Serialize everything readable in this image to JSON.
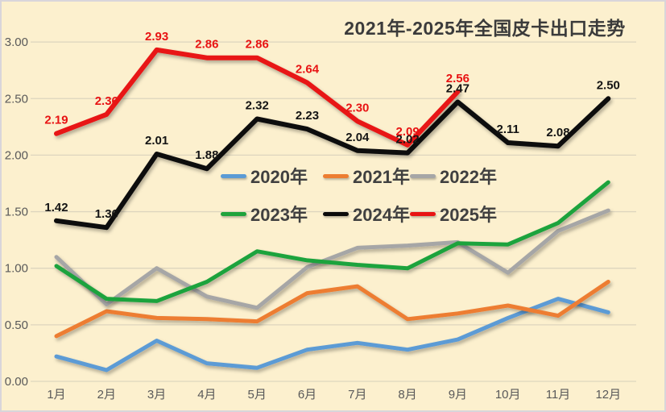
{
  "window": {
    "background_color": "#FCF0CE",
    "border_color": "#D9D5DA"
  },
  "chart_data": {
    "type": "line",
    "title": "2021年-2025年全国皮卡出口走势",
    "xlabel": "",
    "ylabel": "",
    "categories": [
      "1月",
      "2月",
      "3月",
      "4月",
      "5月",
      "6月",
      "7月",
      "8月",
      "9月",
      "10月",
      "11月",
      "12月"
    ],
    "y_ticks": [
      "0.00",
      "0.50",
      "1.00",
      "1.50",
      "2.00",
      "2.50",
      "3.00"
    ],
    "ylim": [
      0,
      3.0
    ],
    "grid": true,
    "gridline_color": "#DDD5BE",
    "legend_position": "inside-center-two-rows",
    "axis_label_color": "#595959",
    "series": [
      {
        "name": "2020年",
        "color": "#5B9BD5",
        "labels_shown": false,
        "values": [
          0.22,
          0.1,
          0.36,
          0.16,
          0.12,
          0.28,
          0.34,
          0.28,
          0.37,
          0.56,
          0.73,
          0.61
        ]
      },
      {
        "name": "2021年",
        "color": "#ED7D31",
        "labels_shown": false,
        "values": [
          0.4,
          0.62,
          0.56,
          0.55,
          0.53,
          0.78,
          0.84,
          0.55,
          0.6,
          0.67,
          0.58,
          0.88
        ]
      },
      {
        "name": "2022年",
        "color": "#A6A6A6",
        "labels_shown": false,
        "values": [
          1.1,
          0.68,
          1.0,
          0.75,
          0.65,
          1.01,
          1.18,
          1.2,
          1.23,
          0.96,
          1.33,
          1.51
        ]
      },
      {
        "name": "2023年",
        "color": "#1FA33C",
        "labels_shown": false,
        "values": [
          1.02,
          0.73,
          0.71,
          0.88,
          1.15,
          1.07,
          1.03,
          1.0,
          1.22,
          1.21,
          1.4,
          1.76
        ]
      },
      {
        "name": "2024年",
        "color": "#0A0A0A",
        "labels_shown": true,
        "label_color": "#141414",
        "values": [
          1.42,
          1.36,
          2.01,
          1.88,
          2.32,
          2.23,
          2.04,
          2.02,
          2.47,
          2.11,
          2.08,
          2.5
        ]
      },
      {
        "name": "2025年",
        "color": "#E81313",
        "labels_shown": true,
        "label_color": "#E81313",
        "values": [
          2.19,
          2.36,
          2.93,
          2.86,
          2.86,
          2.64,
          2.3,
          2.09,
          2.56
        ]
      }
    ]
  }
}
